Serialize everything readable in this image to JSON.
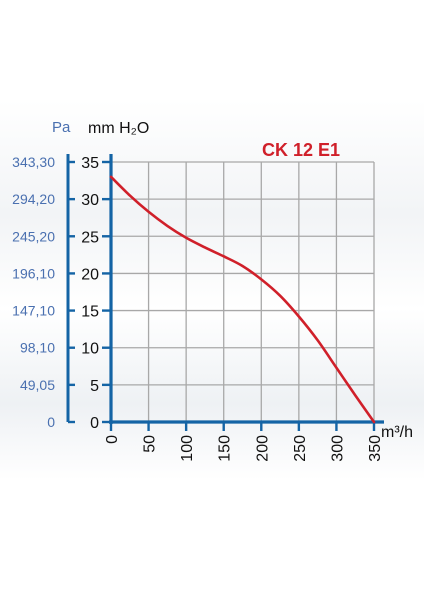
{
  "chart_data": {
    "type": "line",
    "title": "CK 12 E1",
    "xlabel": "m³/h",
    "ylabel": "mm H₂O",
    "y2label": "Pa",
    "xlim": [
      0,
      350
    ],
    "ylim": [
      0,
      35
    ],
    "x_ticks": [
      "0",
      "50",
      "100",
      "150",
      "200",
      "250",
      "300",
      "350"
    ],
    "y_ticks": [
      "0",
      "5",
      "10",
      "15",
      "20",
      "25",
      "30",
      "35"
    ],
    "pa_ticks": [
      "0",
      "49,05",
      "98,10",
      "147,10",
      "196,10",
      "245,20",
      "294,20",
      "343,30"
    ],
    "grid": true,
    "series": [
      {
        "color": "#d0202a",
        "x": [
          0,
          25,
          50,
          75,
          100,
          125,
          150,
          175,
          200,
          225,
          250,
          275,
          300,
          325,
          350
        ],
        "y": [
          33,
          30.5,
          28.3,
          26.4,
          24.8,
          23.5,
          22.3,
          21,
          19.2,
          17,
          14.2,
          11,
          7.3,
          3.6,
          0
        ]
      }
    ]
  },
  "colors": {
    "axis": "#1464a5",
    "pa_text": "#4a70b0",
    "curve": "#d0202a",
    "grid": "#a8a8a8",
    "title": "#d0202a"
  }
}
